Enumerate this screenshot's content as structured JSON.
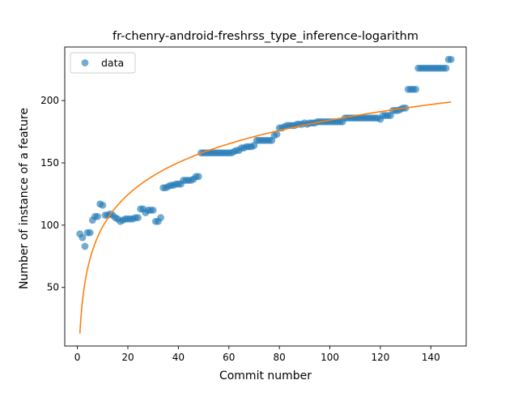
{
  "chart_data": {
    "type": "scatter",
    "title": "fr-chenry-android-freshrss_type_inference-logarithm",
    "xlabel": "Commit number",
    "ylabel": "Number of instance of a feature",
    "xlim": [
      -5,
      154
    ],
    "ylim": [
      3,
      243
    ],
    "x_ticks": [
      0,
      20,
      40,
      60,
      80,
      100,
      120,
      140
    ],
    "y_ticks": [
      50,
      100,
      150,
      200
    ],
    "grid": false,
    "legend": {
      "position": "top-left",
      "entries": [
        "data"
      ]
    },
    "colors": {
      "data": "#1f77b4",
      "fit": "#ff7f0e"
    },
    "series": [
      {
        "name": "data",
        "kind": "scatter",
        "x": [
          1,
          2,
          3,
          4,
          5,
          6,
          7,
          8,
          9,
          10,
          11,
          12,
          13,
          14,
          15,
          16,
          17,
          18,
          19,
          20,
          21,
          22,
          23,
          24,
          25,
          26,
          27,
          28,
          29,
          30,
          31,
          32,
          33,
          34,
          35,
          36,
          37,
          38,
          39,
          40,
          41,
          42,
          43,
          44,
          45,
          46,
          47,
          48,
          49,
          50,
          51,
          52,
          53,
          54,
          55,
          56,
          57,
          58,
          59,
          60,
          61,
          62,
          63,
          64,
          65,
          66,
          67,
          68,
          69,
          70,
          71,
          72,
          73,
          74,
          75,
          76,
          77,
          78,
          79,
          80,
          81,
          82,
          83,
          84,
          85,
          86,
          87,
          88,
          89,
          90,
          91,
          92,
          93,
          94,
          95,
          96,
          97,
          98,
          99,
          100,
          101,
          102,
          103,
          104,
          105,
          106,
          107,
          108,
          109,
          110,
          111,
          112,
          113,
          114,
          115,
          116,
          117,
          118,
          119,
          120,
          121,
          122,
          123,
          124,
          125,
          126,
          127,
          128,
          129,
          130,
          131,
          132,
          133,
          134,
          135,
          136,
          137,
          138,
          139,
          140,
          141,
          142,
          143,
          144,
          145,
          146,
          147,
          148
        ],
        "y": [
          93,
          90,
          83,
          94,
          94,
          104,
          107,
          107,
          117,
          116,
          108,
          108,
          109,
          108,
          106,
          105,
          103,
          104,
          105,
          105,
          105,
          105,
          106,
          106,
          113,
          113,
          110,
          112,
          112,
          112,
          103,
          103,
          106,
          130,
          130,
          131,
          132,
          132,
          133,
          133,
          133,
          136,
          136,
          136,
          136,
          137,
          139,
          139,
          158,
          158,
          158,
          158,
          158,
          158,
          158,
          158,
          158,
          158,
          158,
          158,
          158,
          159,
          160,
          160,
          162,
          162,
          163,
          163,
          163,
          164,
          168,
          168,
          168,
          168,
          168,
          168,
          168,
          172,
          173,
          178,
          178,
          179,
          180,
          180,
          180,
          180,
          181,
          181,
          181,
          182,
          181,
          182,
          182,
          182,
          183,
          183,
          183,
          183,
          183,
          183,
          183,
          183,
          183,
          183,
          183,
          186,
          186,
          186,
          186,
          186,
          186,
          186,
          186,
          186,
          186,
          186,
          186,
          186,
          186,
          185,
          188,
          188,
          188,
          188,
          192,
          192,
          192,
          193,
          194,
          194,
          209,
          209,
          209,
          209,
          226,
          226,
          226,
          226,
          226,
          226,
          226,
          226,
          226,
          226,
          226,
          226,
          233,
          233
        ]
      },
      {
        "name": "",
        "kind": "line",
        "model": "logarithmic",
        "coefficients": {
          "a": 13.0,
          "b": 37.2
        },
        "x_range": [
          1,
          148
        ]
      }
    ]
  }
}
